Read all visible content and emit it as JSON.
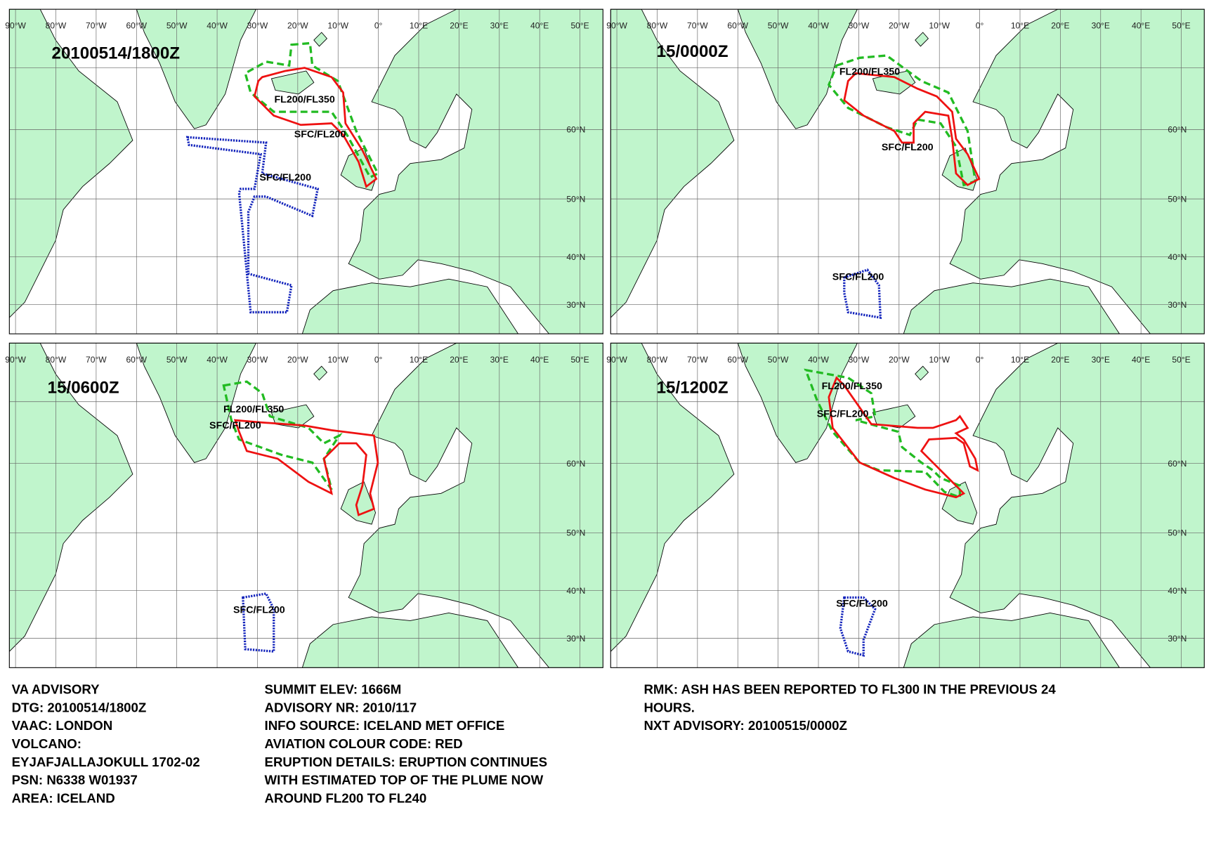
{
  "panels": [
    {
      "title": "20100514/1800Z",
      "labels": [
        "FL200/FL350",
        "SFC/FL200",
        "SFC/FL200"
      ]
    },
    {
      "title": "15/0000Z",
      "labels": [
        "FL200/FL350",
        "SFC/FL200",
        "SFC/FL200"
      ]
    },
    {
      "title": "15/0600Z",
      "labels": [
        "FL200/FL350",
        "SFC/FL200",
        "SFC/FL200"
      ]
    },
    {
      "title": "15/1200Z",
      "labels": [
        "FL200/FL350",
        "SFC/FL200",
        "SFC/FL200"
      ]
    }
  ],
  "lon_labels": [
    "90°W",
    "80°W",
    "70°W",
    "60°W",
    "50°W",
    "40°W",
    "30°W",
    "20°W",
    "10°W",
    "0°",
    "10°E",
    "20°E",
    "30°E",
    "40°E",
    "50°E"
  ],
  "lat_labels": [
    "60°N",
    "50°N",
    "40°N",
    "30°N"
  ],
  "advisory": {
    "col1": [
      "VA ADVISORY",
      "DTG:  20100514/1800Z",
      "VAAC:  LONDON",
      "VOLCANO:",
      "EYJAFJALLAJOKULL 1702-02",
      "PSN:  N6338 W01937",
      "AREA:  ICELAND"
    ],
    "col2": [
      "SUMMIT ELEV:  1666M",
      "ADVISORY NR:  2010/117",
      "INFO SOURCE:  ICELAND MET OFFICE",
      "AVIATION COLOUR CODE:  RED",
      "ERUPTION DETAILS:  ERUPTION CONTINUES",
      "WITH ESTIMATED TOP OF THE PLUME NOW",
      "AROUND FL200 TO FL240"
    ],
    "col3": [
      "RMK:  ASH HAS BEEN REPORTED TO FL300 IN THE PREVIOUS 24",
      "HOURS.",
      "NXT ADVISORY:  20100515/0000Z"
    ]
  }
}
